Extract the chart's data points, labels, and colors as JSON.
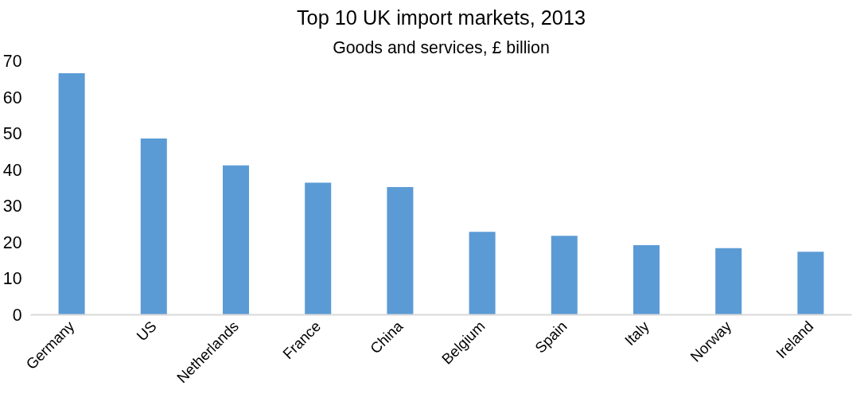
{
  "chart_data": {
    "type": "bar",
    "title": "Top 10 UK import markets, 2013",
    "subtitle": "Goods and services, £ billion",
    "categories": [
      "Germany",
      "US",
      "Netherlands",
      "France",
      "China",
      "Belgium",
      "Spain",
      "Italy",
      "Norway",
      "Ireland"
    ],
    "values": [
      66.6,
      48.6,
      41.2,
      36.4,
      35.2,
      22.9,
      21.8,
      19.2,
      18.4,
      17.4
    ],
    "color": "#5b9bd5",
    "ylim": [
      0,
      70
    ],
    "yticks": [
      0,
      10,
      20,
      30,
      40,
      50,
      60,
      70
    ],
    "grid": false
  }
}
